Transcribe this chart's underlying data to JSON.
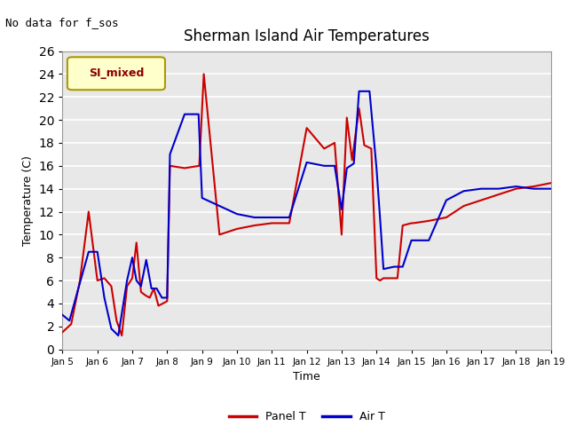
{
  "title": "Sherman Island Air Temperatures",
  "subtitle": "No data for f_sos",
  "xlabel": "Time",
  "ylabel": "Temperature (C)",
  "legend_label": "SI_mixed",
  "ylim": [
    0,
    26
  ],
  "plot_bg_color": "#e8e8e8",
  "panel_T_color": "#cc0000",
  "air_T_color": "#0000cc",
  "linewidth": 1.5,
  "panel_T_x": [
    5.0,
    5.25,
    5.5,
    5.75,
    6.0,
    6.2,
    6.4,
    6.55,
    6.7,
    6.85,
    7.0,
    7.12,
    7.25,
    7.38,
    7.5,
    7.62,
    7.75,
    7.88,
    8.0,
    8.08,
    8.5,
    8.92,
    9.05,
    9.5,
    10.0,
    10.5,
    11.0,
    11.5,
    12.0,
    12.5,
    12.8,
    13.0,
    13.15,
    13.3,
    13.5,
    13.65,
    13.85,
    14.0,
    14.1,
    14.2,
    14.5,
    14.6,
    14.75,
    15.0,
    15.05,
    15.5,
    16.0,
    16.5,
    17.0,
    17.5,
    18.0,
    18.5,
    19.0
  ],
  "panel_T_y": [
    1.5,
    2.2,
    6.0,
    12.0,
    6.0,
    6.2,
    5.5,
    2.5,
    1.2,
    5.5,
    6.2,
    9.3,
    5.0,
    4.7,
    4.5,
    5.3,
    3.8,
    4.0,
    4.2,
    16.0,
    15.8,
    16.0,
    24.0,
    10.0,
    10.5,
    10.8,
    11.0,
    11.0,
    19.3,
    17.5,
    18.0,
    10.0,
    20.2,
    16.5,
    21.0,
    17.8,
    17.5,
    6.2,
    6.0,
    6.2,
    6.2,
    6.2,
    10.8,
    11.0,
    11.0,
    11.2,
    11.5,
    12.5,
    13.0,
    13.5,
    14.0,
    14.2,
    14.5
  ],
  "air_T_x": [
    5.0,
    5.2,
    5.5,
    5.75,
    6.0,
    6.2,
    6.4,
    6.6,
    6.85,
    7.0,
    7.12,
    7.25,
    7.4,
    7.55,
    7.7,
    7.85,
    8.0,
    8.08,
    8.5,
    8.9,
    9.0,
    9.5,
    10.0,
    10.5,
    11.0,
    11.5,
    12.0,
    12.5,
    12.8,
    13.0,
    13.15,
    13.35,
    13.5,
    13.8,
    14.0,
    14.1,
    14.2,
    14.5,
    14.6,
    14.75,
    15.0,
    15.05,
    15.5,
    16.0,
    16.5,
    17.0,
    17.5,
    18.0,
    18.5,
    19.0
  ],
  "air_T_y": [
    3.0,
    2.5,
    5.8,
    8.5,
    8.5,
    4.5,
    1.8,
    1.2,
    6.0,
    8.0,
    6.0,
    5.5,
    7.8,
    5.3,
    5.3,
    4.5,
    4.5,
    17.0,
    20.5,
    20.5,
    13.2,
    12.5,
    11.8,
    11.5,
    11.5,
    11.5,
    16.3,
    16.0,
    16.0,
    12.2,
    15.8,
    16.2,
    22.5,
    22.5,
    15.8,
    11.5,
    7.0,
    7.2,
    7.2,
    7.2,
    9.5,
    9.5,
    9.5,
    13.0,
    13.8,
    14.0,
    14.0,
    14.2,
    14.0,
    14.0
  ]
}
